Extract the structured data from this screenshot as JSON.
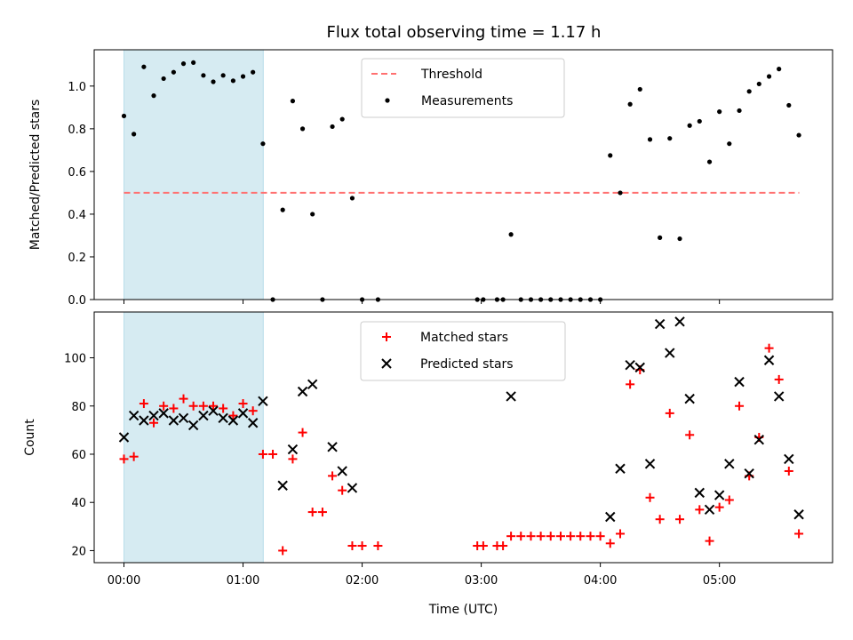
{
  "chart_data": [
    {
      "type": "scatter",
      "title": "Flux total observing time = 1.17 h",
      "xlabel": "",
      "ylabel": "Matched/Predicted stars",
      "xlim": [
        -0.25,
        5.95
      ],
      "ylim": [
        0,
        1.17
      ],
      "yticks": [
        0.0,
        0.2,
        0.4,
        0.6,
        0.8,
        1.0
      ],
      "ytick_labels": [
        "0.0",
        "0.2",
        "0.4",
        "0.6",
        "0.8",
        "1.0"
      ],
      "xticks": [
        0,
        1,
        2,
        3,
        4,
        5
      ],
      "shaded_region": {
        "x0": 0,
        "x1": 1.17,
        "color": "#add8e6",
        "opacity": 0.5
      },
      "threshold": {
        "name": "Threshold",
        "value": 0.5,
        "x_range": [
          0,
          5.67
        ],
        "color": "#ff7070",
        "style": "dashed"
      },
      "legend_location": "upper center",
      "series": [
        {
          "name": "Measurements",
          "marker": "dot",
          "color": "#000000",
          "points": [
            [
              0.0,
              0.86
            ],
            [
              0.083,
              0.775
            ],
            [
              0.167,
              1.09
            ],
            [
              0.25,
              0.955
            ],
            [
              0.333,
              1.035
            ],
            [
              0.417,
              1.065
            ],
            [
              0.5,
              1.105
            ],
            [
              0.583,
              1.11
            ],
            [
              0.667,
              1.05
            ],
            [
              0.75,
              1.02
            ],
            [
              0.833,
              1.05
            ],
            [
              0.917,
              1.025
            ],
            [
              1.0,
              1.045
            ],
            [
              1.083,
              1.065
            ],
            [
              1.167,
              0.73
            ],
            [
              1.25,
              0.0
            ],
            [
              1.333,
              0.42
            ],
            [
              1.417,
              0.93
            ],
            [
              1.5,
              0.8
            ],
            [
              1.583,
              0.4
            ],
            [
              1.667,
              0.0
            ],
            [
              1.75,
              0.81
            ],
            [
              1.833,
              0.845
            ],
            [
              1.917,
              0.475
            ],
            [
              2.0,
              0.0
            ],
            [
              2.133,
              0.0
            ],
            [
              2.967,
              0.0
            ],
            [
              3.017,
              0.0
            ],
            [
              3.133,
              0.0
            ],
            [
              3.183,
              0.0
            ],
            [
              3.25,
              0.305
            ],
            [
              3.333,
              0.0
            ],
            [
              3.417,
              0.0
            ],
            [
              3.5,
              0.0
            ],
            [
              3.583,
              0.0
            ],
            [
              3.667,
              0.0
            ],
            [
              3.75,
              0.0
            ],
            [
              3.833,
              0.0
            ],
            [
              3.917,
              0.0
            ],
            [
              4.0,
              0.0
            ],
            [
              4.083,
              0.675
            ],
            [
              4.167,
              0.5
            ],
            [
              4.25,
              0.915
            ],
            [
              4.333,
              0.985
            ],
            [
              4.417,
              0.75
            ],
            [
              4.5,
              0.29
            ],
            [
              4.583,
              0.755
            ],
            [
              4.667,
              0.285
            ],
            [
              4.75,
              0.815
            ],
            [
              4.833,
              0.835
            ],
            [
              4.917,
              0.645
            ],
            [
              5.0,
              0.88
            ],
            [
              5.083,
              0.73
            ],
            [
              5.167,
              0.885
            ],
            [
              5.25,
              0.975
            ],
            [
              5.333,
              1.01
            ],
            [
              5.417,
              1.045
            ],
            [
              5.5,
              1.08
            ],
            [
              5.583,
              0.91
            ],
            [
              5.667,
              0.77
            ]
          ]
        }
      ]
    },
    {
      "type": "scatter",
      "title": "",
      "xlabel": "Time (UTC)",
      "ylabel": "Count",
      "xlim": [
        -0.25,
        5.95
      ],
      "ylim": [
        15,
        119
      ],
      "yticks": [
        20,
        40,
        60,
        80,
        100
      ],
      "ytick_labels": [
        "20",
        "40",
        "60",
        "80",
        "100"
      ],
      "xticks": [
        0,
        1,
        2,
        3,
        4,
        5
      ],
      "xtick_labels": [
        "00:00",
        "01:00",
        "02:00",
        "03:00",
        "04:00",
        "05:00"
      ],
      "shaded_region": {
        "x0": 0,
        "x1": 1.17,
        "color": "#add8e6",
        "opacity": 0.5
      },
      "legend_location": "upper center",
      "series": [
        {
          "name": "Matched stars",
          "marker": "plus",
          "color": "#ff0000",
          "points": [
            [
              0.0,
              58
            ],
            [
              0.083,
              59
            ],
            [
              0.167,
              81
            ],
            [
              0.25,
              73
            ],
            [
              0.333,
              80
            ],
            [
              0.417,
              79
            ],
            [
              0.5,
              83
            ],
            [
              0.583,
              80
            ],
            [
              0.667,
              80
            ],
            [
              0.75,
              80
            ],
            [
              0.833,
              79
            ],
            [
              0.917,
              76
            ],
            [
              1.0,
              81
            ],
            [
              1.083,
              78
            ],
            [
              1.167,
              60
            ],
            [
              1.25,
              60
            ],
            [
              1.333,
              20
            ],
            [
              1.417,
              58
            ],
            [
              1.5,
              69
            ],
            [
              1.583,
              36
            ],
            [
              1.667,
              36
            ],
            [
              1.75,
              51
            ],
            [
              1.833,
              45
            ],
            [
              1.917,
              22
            ],
            [
              2.0,
              22
            ],
            [
              2.133,
              22
            ],
            [
              2.967,
              22
            ],
            [
              3.017,
              22
            ],
            [
              3.133,
              22
            ],
            [
              3.183,
              22
            ],
            [
              3.25,
              26
            ],
            [
              3.333,
              26
            ],
            [
              3.417,
              26
            ],
            [
              3.5,
              26
            ],
            [
              3.583,
              26
            ],
            [
              3.667,
              26
            ],
            [
              3.75,
              26
            ],
            [
              3.833,
              26
            ],
            [
              3.917,
              26
            ],
            [
              4.0,
              26
            ],
            [
              4.083,
              23
            ],
            [
              4.167,
              27
            ],
            [
              4.25,
              89
            ],
            [
              4.333,
              95
            ],
            [
              4.417,
              42
            ],
            [
              4.5,
              33
            ],
            [
              4.583,
              77
            ],
            [
              4.667,
              33
            ],
            [
              4.75,
              68
            ],
            [
              4.833,
              37
            ],
            [
              4.917,
              24
            ],
            [
              5.0,
              38
            ],
            [
              5.083,
              41
            ],
            [
              5.167,
              80
            ],
            [
              5.25,
              51
            ],
            [
              5.333,
              67
            ],
            [
              5.417,
              104
            ],
            [
              5.5,
              91
            ],
            [
              5.583,
              53
            ],
            [
              5.667,
              27
            ]
          ]
        },
        {
          "name": "Predicted stars",
          "marker": "x",
          "color": "#000000",
          "points": [
            [
              0.0,
              67
            ],
            [
              0.083,
              76
            ],
            [
              0.167,
              74
            ],
            [
              0.25,
              76
            ],
            [
              0.333,
              77
            ],
            [
              0.417,
              74
            ],
            [
              0.5,
              75
            ],
            [
              0.583,
              72
            ],
            [
              0.667,
              76
            ],
            [
              0.75,
              78
            ],
            [
              0.833,
              75
            ],
            [
              0.917,
              74
            ],
            [
              1.0,
              77
            ],
            [
              1.083,
              73
            ],
            [
              1.167,
              82
            ],
            [
              1.333,
              47
            ],
            [
              1.417,
              62
            ],
            [
              1.5,
              86
            ],
            [
              1.583,
              89
            ],
            [
              1.75,
              63
            ],
            [
              1.833,
              53
            ],
            [
              1.917,
              46
            ],
            [
              3.25,
              84
            ],
            [
              4.083,
              34
            ],
            [
              4.167,
              54
            ],
            [
              4.25,
              97
            ],
            [
              4.333,
              96
            ],
            [
              4.417,
              56
            ],
            [
              4.5,
              114
            ],
            [
              4.583,
              102
            ],
            [
              4.667,
              115
            ],
            [
              4.75,
              83
            ],
            [
              4.833,
              44
            ],
            [
              4.917,
              37
            ],
            [
              5.0,
              43
            ],
            [
              5.083,
              56
            ],
            [
              5.167,
              90
            ],
            [
              5.25,
              52
            ],
            [
              5.333,
              66
            ],
            [
              5.417,
              99
            ],
            [
              5.5,
              84
            ],
            [
              5.583,
              58
            ],
            [
              5.667,
              35
            ]
          ]
        }
      ]
    }
  ]
}
